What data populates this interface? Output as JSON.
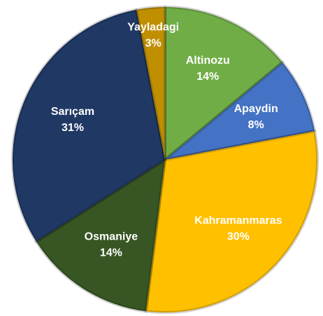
{
  "chart_data": {
    "type": "pie",
    "categories": [
      "Altinozu",
      "Apaydin",
      "Kahramanmaras",
      "Osmaniye",
      "Sarıçam",
      "Yayladagi"
    ],
    "values": [
      14,
      8,
      30,
      14,
      31,
      3
    ],
    "value_labels": [
      "14%",
      "8%",
      "30%",
      "14%",
      "31%",
      "3%"
    ],
    "colors": [
      "#70ad47",
      "#4472c4",
      "#ffc000",
      "#375623",
      "#203864",
      "#bf8f00"
    ]
  }
}
